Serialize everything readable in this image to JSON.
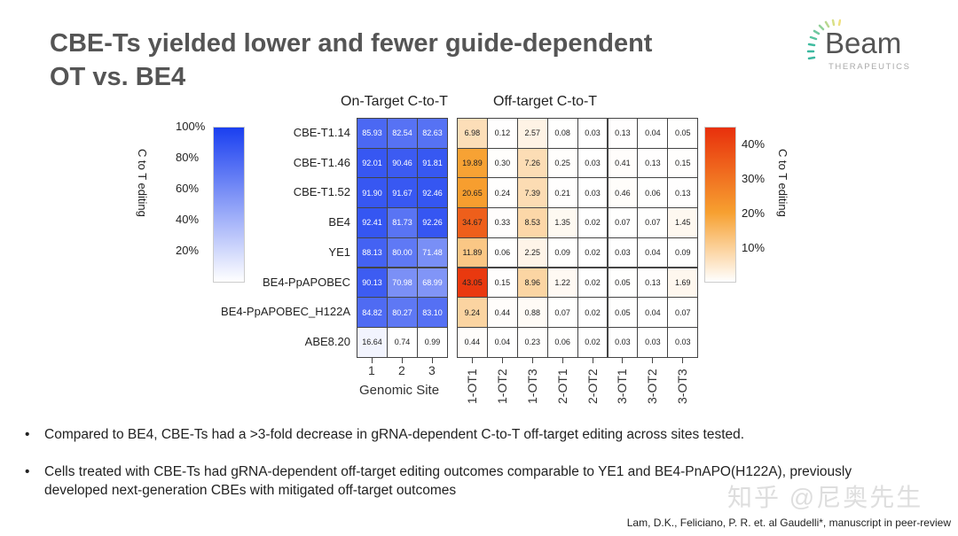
{
  "slide": {
    "title_line1": "CBE-Ts yielded lower and fewer guide-dependent",
    "title_line2": "OT vs. BE4",
    "logo": {
      "word": "Beam",
      "sub": "THERAPEUTICS"
    },
    "bullets": [
      "Compared to BE4, CBE-Ts had a >3-fold decrease in gRNA-dependent C-to-T off-target editing across sites tested.",
      "Cells treated with CBE-Ts had gRNA-dependent off-target editing outcomes comparable to YE1 and BE4-PnAPO(H122A), previously developed next-generation CBEs with mitigated off-target outcomes"
    ],
    "bullet_symbol": "•",
    "citation": "Lam, D.K., Feliciano, P. R. et. al Gaudelli*, manuscript in peer-review",
    "watermark": "知乎 @尼奥先生"
  },
  "chart_data": [
    {
      "type": "heatmap",
      "title": "On-Target C-to-T",
      "xlabel": "Genomic Site",
      "categories": [
        "1",
        "2",
        "3"
      ],
      "rows": [
        "CBE-T1.14",
        "CBE-T1.46",
        "CBE-T1.52",
        "BE4",
        "YE1",
        "BE4-PpAPOBEC",
        "BE4-PpAPOBEC_H122A",
        "ABE8.20"
      ],
      "values": [
        [
          85.93,
          82.54,
          82.63
        ],
        [
          92.01,
          90.46,
          91.81
        ],
        [
          91.9,
          91.67,
          92.46
        ],
        [
          92.41,
          81.73,
          92.26
        ],
        [
          88.13,
          80.0,
          71.48
        ],
        [
          90.13,
          70.98,
          68.99
        ],
        [
          84.82,
          80.27,
          83.1
        ],
        [
          16.64,
          0.74,
          0.99
        ]
      ],
      "colorbar": {
        "label": "C to T editing",
        "range": [
          0,
          100
        ],
        "ticks": [
          "100%",
          "80%",
          "60%",
          "40%",
          "20%"
        ],
        "tick_values": [
          100,
          80,
          60,
          40,
          20
        ],
        "color_low": "#ffffff",
        "color_high": "#1a3ff0",
        "position": "left"
      }
    },
    {
      "type": "heatmap",
      "title": "Off-target C-to-T",
      "categories": [
        "1-OT1",
        "1-OT2",
        "1-OT3",
        "2-OT1",
        "2-OT2",
        "3-OT1",
        "3-OT2",
        "3-OT3"
      ],
      "rows": [
        "CBE-T1.14",
        "CBE-T1.46",
        "CBE-T1.52",
        "BE4",
        "YE1",
        "BE4-PpAPOBEC",
        "BE4-PpAPOBEC_H122A",
        "ABE8.20"
      ],
      "values": [
        [
          6.98,
          0.12,
          2.57,
          0.08,
          0.03,
          0.13,
          0.04,
          0.05
        ],
        [
          19.89,
          0.3,
          7.26,
          0.25,
          0.03,
          0.41,
          0.13,
          0.15
        ],
        [
          20.65,
          0.24,
          7.39,
          0.21,
          0.03,
          0.46,
          0.06,
          0.13
        ],
        [
          34.67,
          0.33,
          8.53,
          1.35,
          0.02,
          0.07,
          0.07,
          1.45
        ],
        [
          11.89,
          0.06,
          2.25,
          0.09,
          0.02,
          0.03,
          0.04,
          0.09
        ],
        [
          43.05,
          0.15,
          8.96,
          1.22,
          0.02,
          0.05,
          0.13,
          1.69
        ],
        [
          9.24,
          0.44,
          0.88,
          0.07,
          0.02,
          0.05,
          0.04,
          0.07
        ],
        [
          0.44,
          0.04,
          0.23,
          0.06,
          0.02,
          0.03,
          0.03,
          0.03
        ]
      ],
      "colorbar": {
        "label": "C to T editing",
        "range": [
          0,
          45
        ],
        "ticks": [
          "40%",
          "30%",
          "20%",
          "10%"
        ],
        "tick_values": [
          40,
          30,
          20,
          10
        ],
        "color_low": "#ffffff",
        "color_mid": "#f7a030",
        "color_high": "#e8300c",
        "position": "right"
      }
    }
  ]
}
